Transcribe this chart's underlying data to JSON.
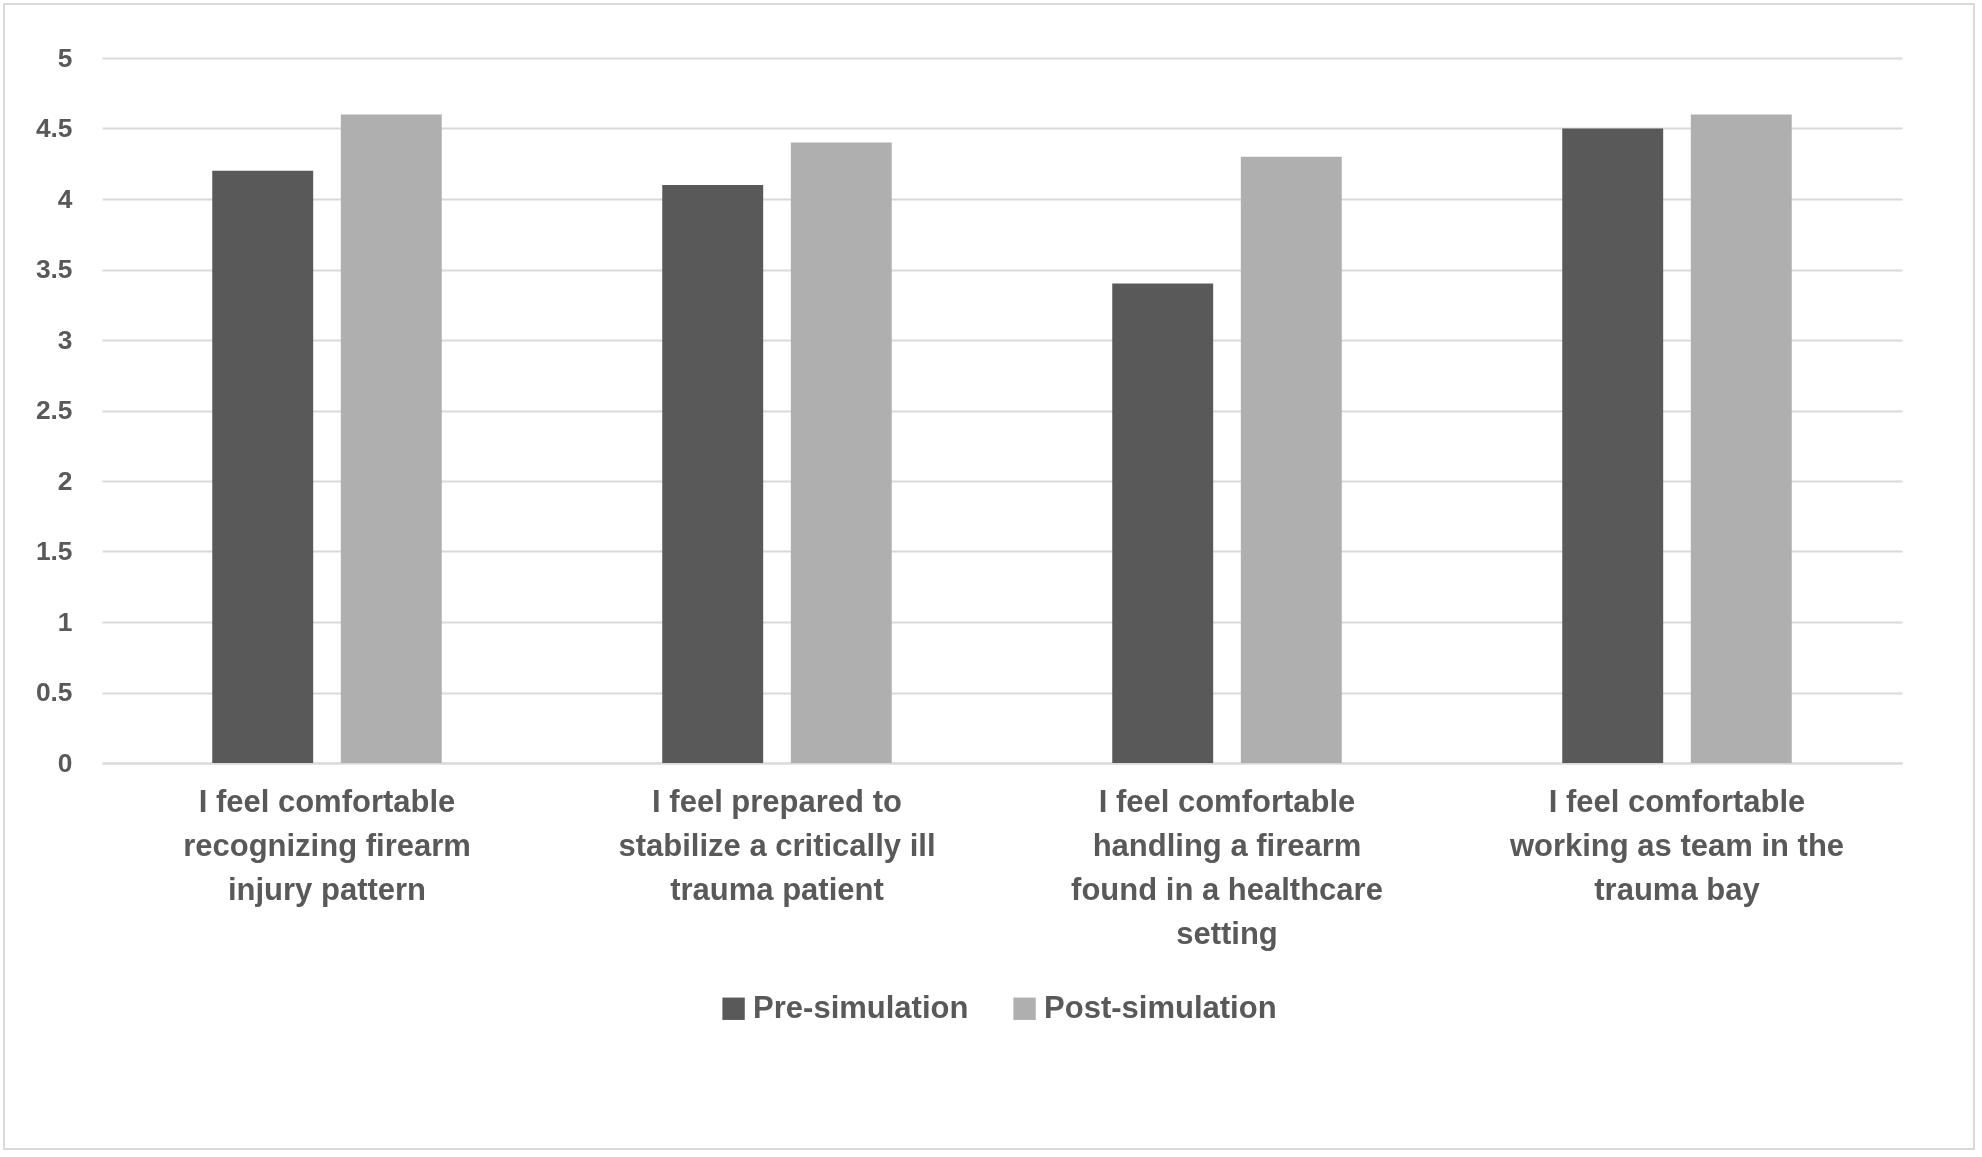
{
  "chart_data": {
    "type": "bar",
    "categories": [
      "I feel comfortable recognizing firearm injury pattern",
      "I feel prepared to stabilize a critically ill trauma patient",
      "I feel comfortable handling a firearm found in a healthcare setting",
      "I feel comfortable working as team in the trauma bay"
    ],
    "series": [
      {
        "name": "Pre-simulation",
        "color": "#595959",
        "values": [
          4.2,
          4.1,
          3.4,
          4.5
        ]
      },
      {
        "name": "Post-simulation",
        "color": "#afafaf",
        "values": [
          4.6,
          4.4,
          4.3,
          4.6
        ]
      }
    ],
    "ylim": [
      0,
      5
    ],
    "yticks": [
      0,
      0.5,
      1,
      1.5,
      2,
      2.5,
      3,
      3.5,
      4,
      4.5,
      5
    ],
    "grid": "y",
    "legend": "bottom"
  }
}
